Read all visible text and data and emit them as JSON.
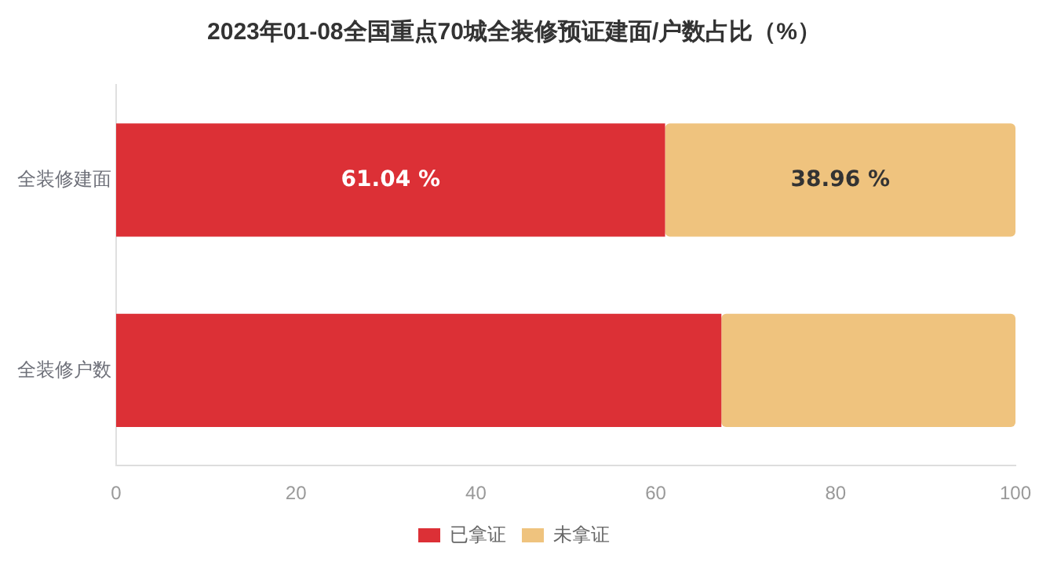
{
  "chart_data": {
    "type": "bar",
    "orientation": "horizontal",
    "stacked": true,
    "title": "2023年01-08全国重点70城全装修预证建面/户数占比（%）",
    "categories": [
      "全装修建面",
      "全装修户数"
    ],
    "series": [
      {
        "name": "已拿证",
        "color": "#dc3036",
        "values": [
          61.04,
          67.3
        ],
        "value_labels": [
          "61.04 %",
          null
        ]
      },
      {
        "name": "未拿证",
        "color": "#efc37e",
        "values": [
          38.96,
          32.7
        ],
        "value_labels": [
          "38.96 %",
          null
        ]
      }
    ],
    "xlim": [
      0,
      100
    ],
    "xticks": [
      0,
      20,
      40,
      60,
      80,
      100
    ],
    "grid": false,
    "legend": "bottom"
  }
}
